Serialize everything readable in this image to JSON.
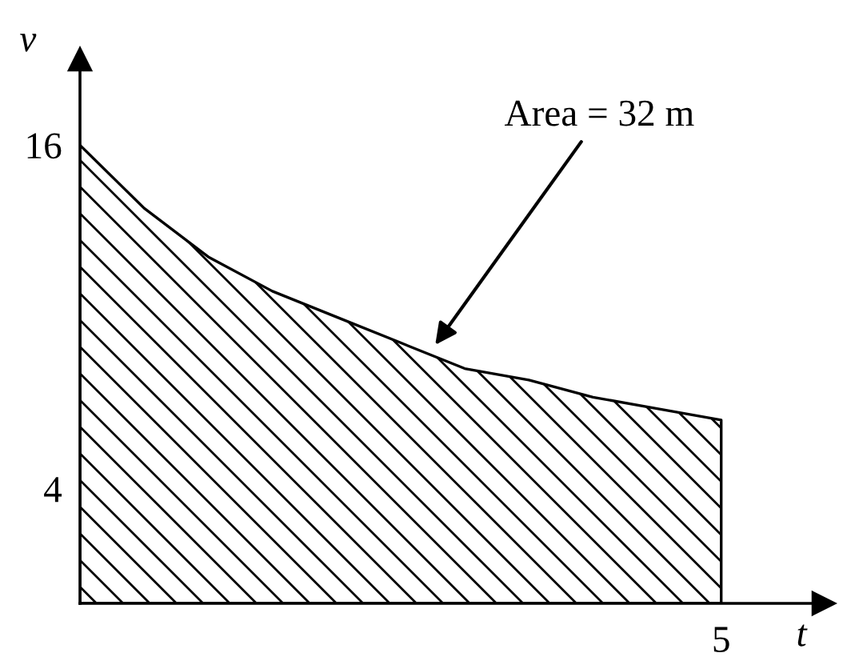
{
  "chart_data": {
    "type": "area",
    "xlabel": "t",
    "ylabel": "v",
    "categories": [
      null,
      null,
      null,
      null,
      null,
      null,
      null,
      null,
      null,
      null,
      null
    ],
    "series": [
      {
        "color": "#000000",
        "values": [
          16,
          13.8,
          12.1,
          10.9,
          10.0,
          9.1,
          8.2,
          7.8,
          7.2,
          6.8,
          6.4
        ]
      }
    ],
    "ylim": [
      0,
      19
    ],
    "yticks": [
      4,
      16
    ],
    "grid": false,
    "legend": false,
    "annotations": [
      "Area = 32 m",
      {
        "text": "5",
        "y": 0
      }
    ]
  }
}
